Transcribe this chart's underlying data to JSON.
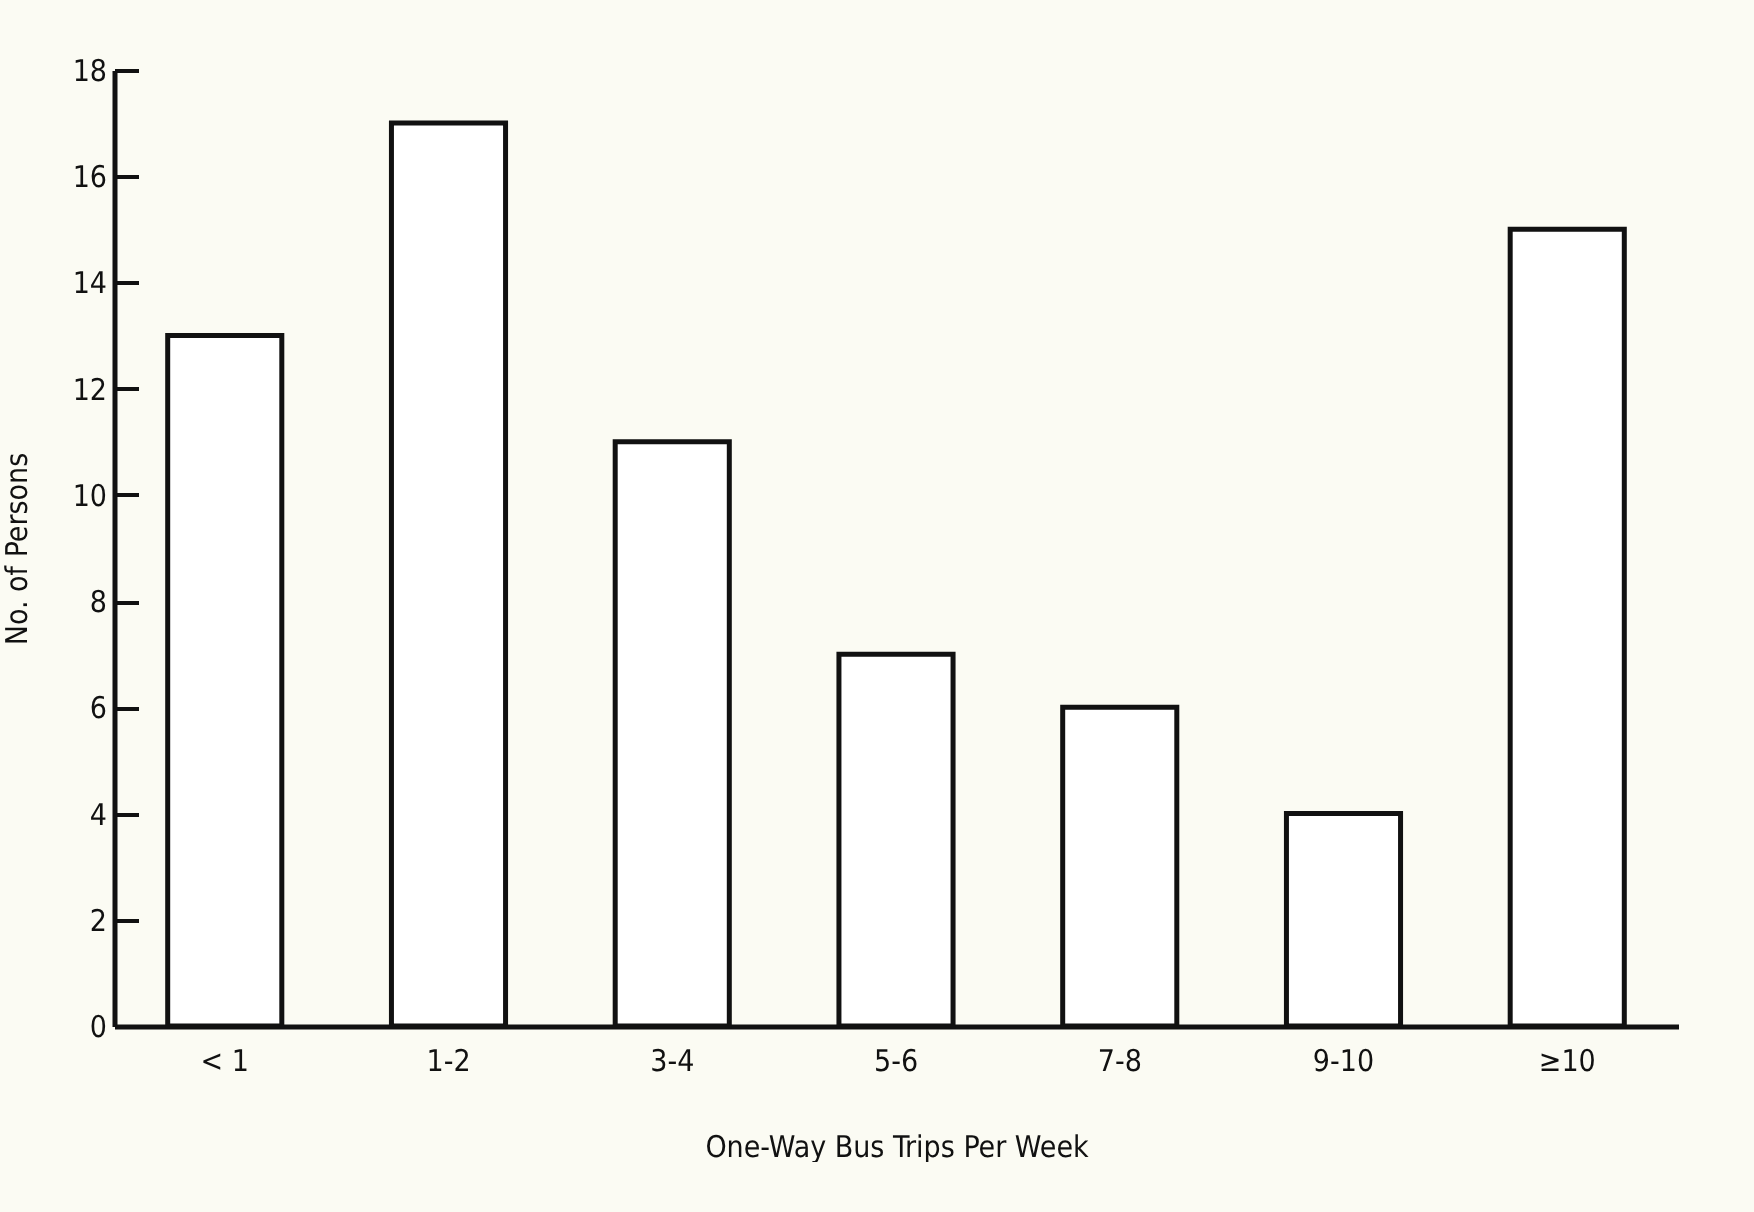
{
  "chart_data": {
    "type": "bar",
    "xlabel": "One-Way Bus Trips Per Week",
    "ylabel": "No. of Persons",
    "categories": [
      "< 1",
      "1-2",
      "3-4",
      "5-6",
      "7-8",
      "9-10",
      "≥10"
    ],
    "values": [
      13,
      17,
      11,
      7,
      6,
      4,
      15
    ],
    "color": "#ffffff",
    "ylim": [
      0,
      18
    ],
    "yticks": [
      0,
      2,
      4,
      6,
      8,
      10,
      12,
      14,
      16,
      18
    ],
    "grid": false
  }
}
